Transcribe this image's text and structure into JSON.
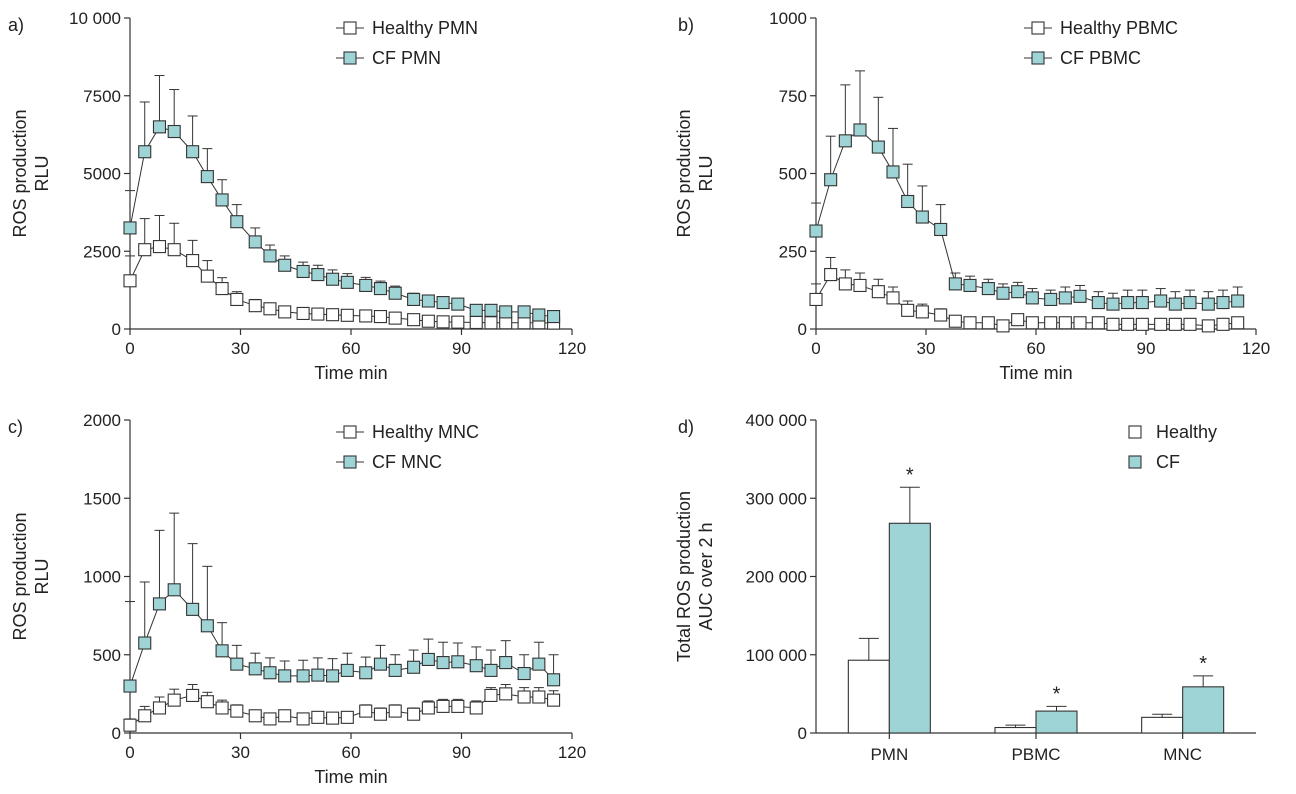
{
  "chart_data": [
    {
      "panel": "a)",
      "type": "line",
      "ylabel": [
        "ROS production",
        "RLU"
      ],
      "xlabel": "Time min",
      "ylim": [
        0,
        10000
      ],
      "yticks": [
        0,
        2500,
        5000,
        7500,
        10000
      ],
      "ytick_labels": [
        "0",
        "2500",
        "5000",
        "7500",
        "10 000"
      ],
      "xlim": [
        0,
        120
      ],
      "xticks": [
        0,
        30,
        60,
        90,
        120
      ],
      "legend_position": "top-right",
      "series": [
        {
          "name": "Healthy PMN",
          "color": "#ffffff",
          "x": [
            0,
            4,
            8,
            12,
            17,
            21,
            25,
            29,
            34,
            38,
            42,
            47,
            51,
            55,
            59,
            64,
            68,
            72,
            77,
            81,
            85,
            89,
            94,
            98,
            102,
            107,
            111,
            115
          ],
          "y": [
            1550,
            2550,
            2650,
            2550,
            2200,
            1700,
            1300,
            950,
            750,
            650,
            550,
            500,
            480,
            460,
            440,
            420,
            400,
            350,
            300,
            250,
            230,
            220,
            210,
            200,
            200,
            200,
            200,
            190
          ],
          "err": [
            800,
            1000,
            1000,
            850,
            650,
            500,
            350,
            250,
            200,
            150,
            130,
            120,
            110,
            100,
            100,
            100,
            90,
            90,
            80,
            80,
            70,
            70,
            70,
            70,
            60,
            60,
            60,
            60
          ]
        },
        {
          "name": "CF PMN",
          "color": "#9fd4d6",
          "x": [
            0,
            4,
            8,
            12,
            17,
            21,
            25,
            29,
            34,
            38,
            42,
            47,
            51,
            55,
            59,
            64,
            68,
            72,
            77,
            81,
            85,
            89,
            94,
            98,
            102,
            107,
            111,
            115
          ],
          "y": [
            3250,
            5700,
            6500,
            6350,
            5700,
            4900,
            4150,
            3450,
            2800,
            2350,
            2050,
            1850,
            1750,
            1600,
            1500,
            1400,
            1300,
            1150,
            950,
            900,
            850,
            800,
            600,
            600,
            550,
            550,
            450,
            400
          ],
          "err": [
            1200,
            1600,
            1650,
            1350,
            1150,
            900,
            650,
            550,
            450,
            350,
            300,
            300,
            300,
            300,
            280,
            260,
            240,
            230,
            200,
            190,
            180,
            170,
            160,
            160,
            150,
            150,
            140,
            130
          ]
        }
      ]
    },
    {
      "panel": "b)",
      "type": "line",
      "ylabel": [
        "ROS production",
        "RLU"
      ],
      "xlabel": "Time min",
      "ylim": [
        0,
        1000
      ],
      "yticks": [
        0,
        250,
        500,
        750,
        1000
      ],
      "ytick_labels": [
        "0",
        "250",
        "500",
        "750",
        "1000"
      ],
      "xlim": [
        0,
        120
      ],
      "xticks": [
        0,
        30,
        60,
        90,
        120
      ],
      "legend_position": "top-right",
      "series": [
        {
          "name": "Healthy PBMC",
          "color": "#ffffff",
          "x": [
            0,
            4,
            8,
            12,
            17,
            21,
            25,
            29,
            34,
            38,
            42,
            47,
            51,
            55,
            59,
            64,
            68,
            72,
            77,
            81,
            85,
            89,
            94,
            98,
            102,
            107,
            111,
            115
          ],
          "y": [
            95,
            175,
            145,
            140,
            120,
            100,
            60,
            55,
            45,
            25,
            20,
            20,
            10,
            30,
            20,
            20,
            20,
            20,
            20,
            15,
            15,
            15,
            15,
            15,
            15,
            10,
            15,
            20
          ],
          "err": [
            50,
            55,
            45,
            40,
            40,
            35,
            30,
            25,
            20,
            15,
            15,
            15,
            12,
            15,
            15,
            15,
            15,
            15,
            15,
            15,
            15,
            15,
            15,
            15,
            15,
            15,
            15,
            15
          ]
        },
        {
          "name": "CF PBMC",
          "color": "#9fd4d6",
          "x": [
            0,
            4,
            8,
            12,
            17,
            21,
            25,
            29,
            34,
            38,
            42,
            47,
            51,
            55,
            59,
            64,
            68,
            72,
            77,
            81,
            85,
            89,
            94,
            98,
            102,
            107,
            111,
            115
          ],
          "y": [
            315,
            480,
            605,
            640,
            585,
            505,
            410,
            360,
            320,
            145,
            140,
            130,
            115,
            120,
            100,
            95,
            100,
            105,
            85,
            80,
            85,
            85,
            90,
            80,
            85,
            80,
            85,
            90
          ],
          "err": [
            90,
            140,
            180,
            190,
            160,
            140,
            120,
            100,
            80,
            35,
            30,
            30,
            30,
            30,
            30,
            30,
            35,
            35,
            35,
            35,
            40,
            40,
            40,
            40,
            40,
            40,
            40,
            45
          ]
        }
      ]
    },
    {
      "panel": "c)",
      "type": "line",
      "ylabel": [
        "ROS production",
        "RLU"
      ],
      "xlabel": "Time min",
      "ylim": [
        0,
        2000
      ],
      "yticks": [
        0,
        500,
        1000,
        1500,
        2000
      ],
      "ytick_labels": [
        "0",
        "500",
        "1000",
        "1500",
        "2000"
      ],
      "xlim": [
        0,
        120
      ],
      "xticks": [
        0,
        30,
        60,
        90,
        120
      ],
      "legend_position": "top-right",
      "series": [
        {
          "name": "Healthy MNC",
          "color": "#ffffff",
          "x": [
            0,
            4,
            8,
            12,
            17,
            21,
            25,
            29,
            34,
            38,
            42,
            47,
            51,
            55,
            59,
            64,
            68,
            72,
            77,
            81,
            85,
            89,
            94,
            98,
            102,
            107,
            111,
            115
          ],
          "y": [
            50,
            110,
            160,
            210,
            240,
            200,
            160,
            140,
            110,
            90,
            110,
            90,
            100,
            95,
            100,
            140,
            120,
            140,
            120,
            160,
            170,
            170,
            160,
            240,
            250,
            230,
            230,
            210
          ],
          "err": [
            40,
            60,
            70,
            70,
            70,
            60,
            50,
            40,
            35,
            30,
            30,
            30,
            30,
            30,
            35,
            40,
            40,
            40,
            40,
            45,
            45,
            45,
            45,
            50,
            60,
            60,
            60,
            60
          ]
        },
        {
          "name": "CF MNC",
          "color": "#9fd4d6",
          "x": [
            0,
            4,
            8,
            12,
            17,
            21,
            25,
            29,
            34,
            38,
            42,
            47,
            51,
            55,
            59,
            64,
            68,
            72,
            77,
            81,
            85,
            89,
            94,
            98,
            102,
            107,
            111,
            115
          ],
          "y": [
            300,
            575,
            825,
            915,
            790,
            685,
            525,
            440,
            410,
            385,
            365,
            365,
            370,
            365,
            400,
            385,
            440,
            400,
            420,
            470,
            450,
            455,
            430,
            400,
            450,
            380,
            440,
            340
          ],
          "err": [
            540,
            390,
            470,
            490,
            420,
            380,
            180,
            120,
            100,
            95,
            95,
            100,
            110,
            110,
            110,
            100,
            120,
            100,
            110,
            130,
            130,
            120,
            120,
            130,
            140,
            120,
            140,
            160
          ]
        }
      ]
    },
    {
      "panel": "d)",
      "type": "bar",
      "ylabel": [
        "Total ROS production",
        "AUC over 2 h"
      ],
      "xlabel": "",
      "categories": [
        "PMN",
        "PBMC",
        "MNC"
      ],
      "ylim": [
        0,
        400000
      ],
      "yticks": [
        0,
        100000,
        200000,
        300000,
        400000
      ],
      "ytick_labels": [
        "0",
        "100 000",
        "200 000",
        "300 000",
        "400 000"
      ],
      "legend_position": "top-right",
      "significance_marker": "*",
      "series": [
        {
          "name": "Healthy",
          "color": "#ffffff",
          "values": [
            93000,
            7000,
            20000
          ],
          "err": [
            28000,
            3000,
            4000
          ],
          "significant": [
            false,
            false,
            false
          ]
        },
        {
          "name": "CF",
          "color": "#9fd4d6",
          "values": [
            268000,
            28000,
            59000
          ],
          "err": [
            46000,
            6000,
            14000
          ],
          "significant": [
            true,
            true,
            true
          ]
        }
      ]
    }
  ]
}
